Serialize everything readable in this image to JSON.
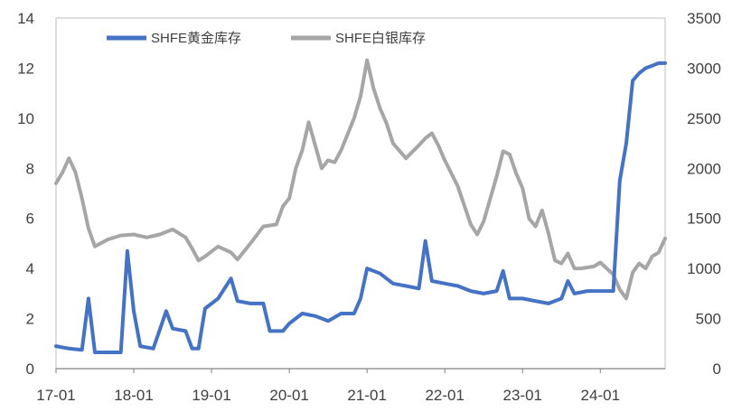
{
  "chart_data": {
    "type": "line",
    "title": "",
    "xlabel": "",
    "ylabel": "",
    "x_tick_labels": [
      "17-01",
      "18-01",
      "19-01",
      "20-01",
      "21-01",
      "22-01",
      "23-01",
      "24-01"
    ],
    "x_range": [
      "2017-01",
      "2024-11"
    ],
    "y_left": {
      "min": 0,
      "max": 14,
      "ticks": [
        0,
        2,
        4,
        6,
        8,
        10,
        12,
        14
      ]
    },
    "y_right": {
      "min": 0,
      "max": 3500,
      "ticks": [
        0,
        500,
        1000,
        1500,
        2000,
        2500,
        3000,
        3500
      ]
    },
    "grid": false,
    "legend": {
      "position": "top"
    },
    "series": [
      {
        "name": "SHFE黄金库存",
        "axis": "left",
        "color": "#4472C4",
        "points": [
          [
            "2017-01",
            0.9
          ],
          [
            "2017-03",
            0.8
          ],
          [
            "2017-05",
            0.75
          ],
          [
            "2017-06",
            2.8
          ],
          [
            "2017-07",
            0.65
          ],
          [
            "2017-09",
            0.65
          ],
          [
            "2017-11",
            0.65
          ],
          [
            "2017-12",
            4.7
          ],
          [
            "2018-01",
            2.3
          ],
          [
            "2018-02",
            0.9
          ],
          [
            "2018-04",
            0.8
          ],
          [
            "2018-06",
            2.3
          ],
          [
            "2018-07",
            1.6
          ],
          [
            "2018-09",
            1.5
          ],
          [
            "2018-10",
            0.8
          ],
          [
            "2018-11",
            0.8
          ],
          [
            "2018-12",
            2.4
          ],
          [
            "2019-02",
            2.8
          ],
          [
            "2019-04",
            3.6
          ],
          [
            "2019-05",
            2.7
          ],
          [
            "2019-07",
            2.6
          ],
          [
            "2019-09",
            2.6
          ],
          [
            "2019-10",
            1.5
          ],
          [
            "2019-12",
            1.5
          ],
          [
            "2020-01",
            1.8
          ],
          [
            "2020-03",
            2.2
          ],
          [
            "2020-05",
            2.1
          ],
          [
            "2020-07",
            1.9
          ],
          [
            "2020-09",
            2.2
          ],
          [
            "2020-11",
            2.2
          ],
          [
            "2020-12",
            2.8
          ],
          [
            "2021-01",
            4.0
          ],
          [
            "2021-03",
            3.8
          ],
          [
            "2021-05",
            3.4
          ],
          [
            "2021-07",
            3.3
          ],
          [
            "2021-09",
            3.2
          ],
          [
            "2021-10",
            5.1
          ],
          [
            "2021-11",
            3.5
          ],
          [
            "2022-01",
            3.4
          ],
          [
            "2022-03",
            3.3
          ],
          [
            "2022-05",
            3.1
          ],
          [
            "2022-07",
            3.0
          ],
          [
            "2022-09",
            3.1
          ],
          [
            "2022-10",
            3.9
          ],
          [
            "2022-11",
            2.8
          ],
          [
            "2023-01",
            2.8
          ],
          [
            "2023-03",
            2.7
          ],
          [
            "2023-05",
            2.6
          ],
          [
            "2023-07",
            2.8
          ],
          [
            "2023-08",
            3.5
          ],
          [
            "2023-09",
            3.0
          ],
          [
            "2023-11",
            3.1
          ],
          [
            "2024-01",
            3.1
          ],
          [
            "2024-03",
            3.1
          ],
          [
            "2024-04",
            7.5
          ],
          [
            "2024-05",
            9.0
          ],
          [
            "2024-06",
            11.5
          ],
          [
            "2024-07",
            11.8
          ],
          [
            "2024-08",
            12.0
          ],
          [
            "2024-09",
            12.1
          ],
          [
            "2024-10",
            12.2
          ],
          [
            "2024-11",
            12.2
          ]
        ]
      },
      {
        "name": "SHFE白银库存",
        "axis": "right",
        "color": "#A6A6A6",
        "points": [
          [
            "2017-01",
            1850
          ],
          [
            "2017-02",
            1960
          ],
          [
            "2017-03",
            2100
          ],
          [
            "2017-04",
            1960
          ],
          [
            "2017-05",
            1700
          ],
          [
            "2017-06",
            1400
          ],
          [
            "2017-07",
            1220
          ],
          [
            "2017-09",
            1290
          ],
          [
            "2017-11",
            1330
          ],
          [
            "2018-01",
            1340
          ],
          [
            "2018-03",
            1310
          ],
          [
            "2018-05",
            1340
          ],
          [
            "2018-07",
            1390
          ],
          [
            "2018-09",
            1310
          ],
          [
            "2018-10",
            1200
          ],
          [
            "2018-11",
            1080
          ],
          [
            "2018-12",
            1120
          ],
          [
            "2019-02",
            1220
          ],
          [
            "2019-04",
            1160
          ],
          [
            "2019-05",
            1090
          ],
          [
            "2019-07",
            1250
          ],
          [
            "2019-09",
            1420
          ],
          [
            "2019-11",
            1440
          ],
          [
            "2019-12",
            1620
          ],
          [
            "2020-01",
            1700
          ],
          [
            "2020-02",
            2000
          ],
          [
            "2020-03",
            2180
          ],
          [
            "2020-04",
            2460
          ],
          [
            "2020-05",
            2230
          ],
          [
            "2020-06",
            2000
          ],
          [
            "2020-07",
            2080
          ],
          [
            "2020-08",
            2060
          ],
          [
            "2020-09",
            2180
          ],
          [
            "2020-11",
            2500
          ],
          [
            "2020-12",
            2720
          ],
          [
            "2021-01",
            3080
          ],
          [
            "2021-02",
            2800
          ],
          [
            "2021-03",
            2600
          ],
          [
            "2021-04",
            2450
          ],
          [
            "2021-05",
            2250
          ],
          [
            "2021-07",
            2100
          ],
          [
            "2021-09",
            2230
          ],
          [
            "2021-10",
            2300
          ],
          [
            "2021-11",
            2350
          ],
          [
            "2021-12",
            2230
          ],
          [
            "2022-01",
            2080
          ],
          [
            "2022-03",
            1820
          ],
          [
            "2022-05",
            1440
          ],
          [
            "2022-06",
            1340
          ],
          [
            "2022-07",
            1470
          ],
          [
            "2022-09",
            1920
          ],
          [
            "2022-10",
            2170
          ],
          [
            "2022-11",
            2140
          ],
          [
            "2022-12",
            1950
          ],
          [
            "2023-01",
            1800
          ],
          [
            "2023-02",
            1500
          ],
          [
            "2023-03",
            1420
          ],
          [
            "2023-04",
            1580
          ],
          [
            "2023-05",
            1350
          ],
          [
            "2023-06",
            1080
          ],
          [
            "2023-07",
            1050
          ],
          [
            "2023-08",
            1150
          ],
          [
            "2023-09",
            1000
          ],
          [
            "2023-10",
            1000
          ],
          [
            "2023-12",
            1020
          ],
          [
            "2024-01",
            1060
          ],
          [
            "2024-03",
            940
          ],
          [
            "2024-04",
            790
          ],
          [
            "2024-05",
            700
          ],
          [
            "2024-06",
            960
          ],
          [
            "2024-07",
            1050
          ],
          [
            "2024-08",
            1000
          ],
          [
            "2024-09",
            1120
          ],
          [
            "2024-10",
            1160
          ],
          [
            "2024-11",
            1300
          ]
        ]
      }
    ]
  }
}
